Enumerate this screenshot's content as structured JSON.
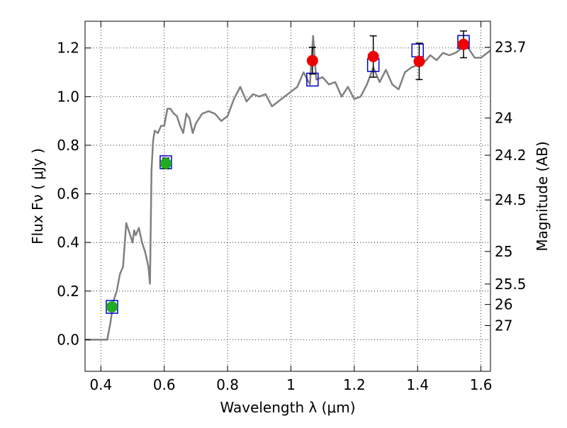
{
  "chart_data": {
    "type": "scatter",
    "title": "",
    "xlabel": "Wavelength  λ (μm)",
    "ylabel": "Flux  Fν  ( μJy )",
    "y2label": "Magnitude (AB)",
    "xlim": [
      0.35,
      1.63
    ],
    "ylim": [
      -0.13,
      1.31
    ],
    "xticks": [
      0.4,
      0.6,
      0.8,
      1.0,
      1.2,
      1.4,
      1.6
    ],
    "xtick_labels": [
      "0.4",
      "0.6",
      "0.8",
      "1",
      "1.2",
      "1.4",
      "1.6"
    ],
    "yticks": [
      0.0,
      0.2,
      0.4,
      0.6,
      0.8,
      1.0,
      1.2
    ],
    "ytick_labels": [
      "0.0",
      "0.2",
      "0.4",
      "0.6",
      "0.8",
      "1.0",
      "1.2"
    ],
    "y2ticks": [
      {
        "label": "23.7",
        "flux": 1.203
      },
      {
        "label": "24",
        "flux": 0.912
      },
      {
        "label": "24.2",
        "flux": 0.759
      },
      {
        "label": "24.5",
        "flux": 0.575
      },
      {
        "label": "25",
        "flux": 0.363
      },
      {
        "label": "25.5",
        "flux": 0.229
      },
      {
        "label": "26",
        "flux": 0.145
      },
      {
        "label": "27",
        "flux": 0.058
      }
    ],
    "grid": true,
    "series": [
      {
        "kind": "line",
        "color": "#808080",
        "x": [
          0.35,
          0.42,
          0.43,
          0.44,
          0.45,
          0.46,
          0.47,
          0.48,
          0.49,
          0.5,
          0.505,
          0.51,
          0.52,
          0.53,
          0.54,
          0.55,
          0.555,
          0.56,
          0.565,
          0.57,
          0.58,
          0.59,
          0.6,
          0.61,
          0.62,
          0.63,
          0.64,
          0.65,
          0.66,
          0.67,
          0.68,
          0.69,
          0.7,
          0.72,
          0.74,
          0.76,
          0.78,
          0.8,
          0.82,
          0.84,
          0.86,
          0.88,
          0.9,
          0.92,
          0.94,
          0.96,
          0.98,
          1.0,
          1.02,
          1.04,
          1.06,
          1.07,
          1.08,
          1.1,
          1.12,
          1.14,
          1.16,
          1.18,
          1.2,
          1.22,
          1.24,
          1.26,
          1.28,
          1.3,
          1.32,
          1.34,
          1.36,
          1.38,
          1.4,
          1.42,
          1.44,
          1.46,
          1.48,
          1.5,
          1.52,
          1.54,
          1.56,
          1.58,
          1.6,
          1.62,
          1.63
        ],
        "y": [
          0.0,
          0.0,
          0.07,
          0.16,
          0.2,
          0.27,
          0.3,
          0.48,
          0.44,
          0.4,
          0.45,
          0.43,
          0.46,
          0.4,
          0.36,
          0.3,
          0.23,
          0.7,
          0.82,
          0.86,
          0.85,
          0.88,
          0.88,
          0.95,
          0.95,
          0.93,
          0.92,
          0.88,
          0.85,
          0.93,
          0.91,
          0.85,
          0.89,
          0.93,
          0.94,
          0.93,
          0.9,
          0.92,
          0.99,
          1.04,
          0.98,
          1.01,
          1.0,
          1.01,
          0.96,
          0.98,
          1.0,
          1.02,
          1.04,
          1.1,
          1.05,
          1.25,
          1.07,
          1.08,
          1.05,
          1.06,
          1.0,
          1.04,
          0.99,
          1.0,
          1.05,
          1.12,
          1.06,
          1.11,
          1.05,
          1.03,
          1.1,
          1.12,
          1.13,
          1.14,
          1.17,
          1.15,
          1.18,
          1.17,
          1.18,
          1.2,
          1.2,
          1.16,
          1.16,
          1.18,
          1.19
        ]
      },
      {
        "kind": "model-box",
        "color": "#0000cc",
        "x": [
          0.435,
          0.605,
          1.068,
          1.26,
          1.4,
          1.545
        ],
        "y": [
          0.135,
          0.73,
          1.07,
          1.13,
          1.19,
          1.225
        ]
      },
      {
        "kind": "marker",
        "color": "#22aa22",
        "x": [
          0.435,
          0.605
        ],
        "y": [
          0.135,
          0.725
        ],
        "err": [
          0.012,
          0.022
        ]
      },
      {
        "kind": "marker",
        "color": "#ee0000",
        "x": [
          1.068,
          1.26,
          1.405,
          1.545
        ],
        "y": [
          1.148,
          1.165,
          1.145,
          1.215
        ],
        "err": [
          0.055,
          0.085,
          0.075,
          0.055
        ]
      }
    ]
  }
}
